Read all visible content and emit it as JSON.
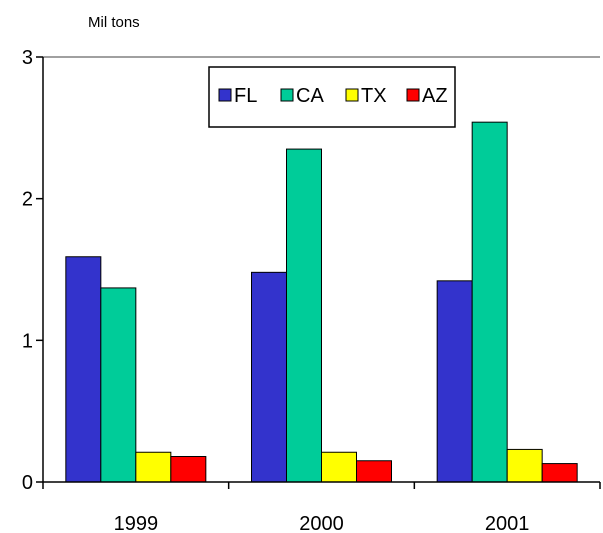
{
  "chart_data": {
    "type": "bar",
    "title": "",
    "xlabel": "",
    "ylabel": "Mil tons",
    "categories": [
      "1999",
      "2000",
      "2001"
    ],
    "series": [
      {
        "name": "FL",
        "color": "#3333cc",
        "values": [
          1.59,
          1.48,
          1.42
        ]
      },
      {
        "name": "CA",
        "color": "#00cc99",
        "values": [
          1.37,
          2.35,
          2.54
        ]
      },
      {
        "name": "TX",
        "color": "#ffff00",
        "values": [
          0.21,
          0.21,
          0.23
        ]
      },
      {
        "name": "AZ",
        "color": "#ff0000",
        "values": [
          0.18,
          0.15,
          0.13
        ]
      }
    ],
    "ylim": [
      0,
      3
    ],
    "yticks": [
      "0",
      "1",
      "2",
      "3"
    ],
    "grid": false,
    "legend_position": "top-center"
  }
}
